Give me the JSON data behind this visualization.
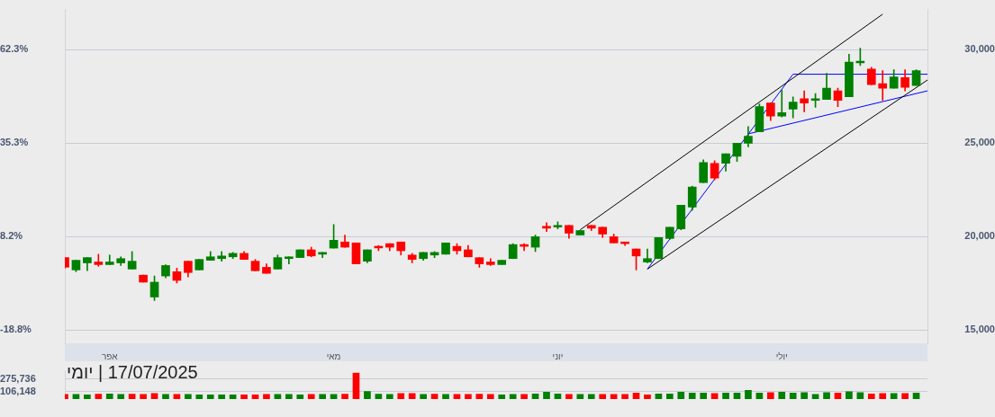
{
  "chart_data": [
    {
      "type": "candlestick",
      "categories": [
        null,
        null,
        null,
        null,
        "אפר",
        null,
        null,
        null,
        null,
        null,
        null,
        null,
        null,
        null,
        null,
        null,
        null,
        null,
        null,
        null,
        null,
        null,
        null,
        null,
        "מאי",
        null,
        null,
        null,
        null,
        null,
        null,
        null,
        null,
        null,
        null,
        null,
        null,
        null,
        null,
        null,
        null,
        null,
        null,
        null,
        "יוני",
        null,
        null,
        null,
        null,
        null,
        null,
        null,
        null,
        null,
        null,
        null,
        null,
        null,
        null,
        null,
        null,
        null,
        null,
        null,
        "יולי",
        null,
        null,
        null,
        null,
        null,
        null,
        null,
        null,
        null,
        null,
        null,
        null,
        null
      ],
      "ohlc": [
        [
          18885,
          18885,
          18320,
          18370
        ],
        [
          18225,
          18740,
          18130,
          18740
        ],
        [
          18600,
          18885,
          18180,
          18885
        ],
        [
          18650,
          19065,
          18415,
          18510
        ],
        [
          18510,
          19020,
          18510,
          18650
        ],
        [
          18600,
          18925,
          18460,
          18830
        ],
        [
          18270,
          19205,
          18270,
          18690
        ],
        [
          17945,
          17945,
          17570,
          17570
        ],
        [
          16775,
          17900,
          16590,
          17570
        ],
        [
          17900,
          18505,
          17805,
          18460
        ],
        [
          18130,
          18320,
          17525,
          17665
        ],
        [
          18690,
          18690,
          17850,
          18085
        ],
        [
          18225,
          18785,
          18225,
          18785
        ],
        [
          18740,
          19205,
          18740,
          18925
        ],
        [
          18830,
          19205,
          18690,
          18970
        ],
        [
          18925,
          19160,
          18830,
          19110
        ],
        [
          19110,
          19205,
          18785,
          18785
        ],
        [
          18690,
          18785,
          18180,
          18180
        ],
        [
          18365,
          18550,
          18040,
          18040
        ],
        [
          18270,
          19020,
          18270,
          18885
        ],
        [
          18830,
          18925,
          18550,
          18925
        ],
        [
          18885,
          19300,
          18885,
          19300
        ],
        [
          19300,
          19440,
          18925,
          18970
        ],
        [
          19065,
          19160,
          18880,
          19160
        ],
        [
          19390,
          20650,
          19390,
          19810
        ],
        [
          19720,
          20090,
          19440,
          19440
        ],
        [
          19670,
          19670,
          18550,
          18550
        ],
        [
          18690,
          19300,
          18600,
          19300
        ],
        [
          19490,
          19530,
          19250,
          19400
        ],
        [
          19630,
          19630,
          19250,
          19440
        ],
        [
          19720,
          19720,
          19020,
          19250
        ],
        [
          19020,
          19110,
          18600,
          18785
        ],
        [
          18830,
          19160,
          18740,
          19160
        ],
        [
          19020,
          19205,
          18880,
          19160
        ],
        [
          19065,
          19670,
          19065,
          19670
        ],
        [
          19485,
          19630,
          19065,
          19250
        ],
        [
          19300,
          19530,
          18925,
          18925
        ],
        [
          18880,
          18880,
          18365,
          18550
        ],
        [
          18650,
          18830,
          18460,
          18510
        ],
        [
          18510,
          18740,
          18510,
          18740
        ],
        [
          18830,
          19630,
          18830,
          19580
        ],
        [
          19580,
          19630,
          19250,
          19485
        ],
        [
          19440,
          20090,
          19205,
          20000
        ],
        [
          20555,
          20750,
          20280,
          20460
        ],
        [
          20510,
          20800,
          20420,
          20600
        ],
        [
          20600,
          20600,
          19910,
          20190
        ],
        [
          20090,
          20330,
          20090,
          20330
        ],
        [
          20600,
          20600,
          20330,
          20460
        ],
        [
          20510,
          20510,
          19955,
          20140
        ],
        [
          20000,
          20140,
          19670,
          19670
        ],
        [
          19720,
          19720,
          19530,
          19630
        ],
        [
          19345,
          19345,
          18225,
          18970
        ],
        [
          18645,
          19345,
          18600,
          18830
        ],
        [
          18830,
          19955,
          18830,
          19955
        ],
        [
          19905,
          20510,
          19860,
          20510
        ],
        [
          20420,
          21680,
          20370,
          21680
        ],
        [
          21590,
          22710,
          21400,
          22660
        ],
        [
          22900,
          24110,
          22900,
          23970
        ],
        [
          23925,
          24065,
          23040,
          23130
        ],
        [
          23925,
          24440,
          23505,
          24440
        ],
        [
          24300,
          25000,
          24020,
          25000
        ],
        [
          25000,
          25890,
          24810,
          25370
        ],
        [
          25610,
          27100,
          25610,
          26960
        ],
        [
          27150,
          27150,
          26215,
          26450
        ],
        [
          26450,
          27850,
          26400,
          26640
        ],
        [
          26820,
          27475,
          26355,
          27200
        ],
        [
          27385,
          27800,
          26680,
          27150
        ],
        [
          27290,
          27660,
          26915,
          27385
        ],
        [
          27340,
          28740,
          27340,
          27945
        ],
        [
          27800,
          27945,
          26960,
          27290
        ],
        [
          27480,
          29765,
          27480,
          29345
        ],
        [
          29300,
          30090,
          29160,
          29390
        ],
        [
          28970,
          29065,
          28130,
          28130
        ],
        [
          28180,
          28880,
          27290,
          27945
        ],
        [
          27945,
          28925,
          27945,
          28550
        ],
        [
          28505,
          28925,
          27800,
          27990
        ],
        [
          28085,
          28925,
          28085,
          28880
        ],
        null
      ],
      "colors": [
        "#ff0000",
        "#008000",
        "#008000",
        "#ff0000",
        "#008000",
        "#008000",
        "#008000",
        "#ff0000",
        "#008000",
        "#008000",
        "#ff0000",
        "#ff0000",
        "#008000",
        "#008000",
        "#008000",
        "#008000",
        "#ff0000",
        "#ff0000",
        "#ff0000",
        "#008000",
        "#008000",
        "#008000",
        "#ff0000",
        "#008000",
        "#008000",
        "#ff0000",
        "#ff0000",
        "#008000",
        "#ff0000",
        "#ff0000",
        "#ff0000",
        "#ff0000",
        "#008000",
        "#008000",
        "#008000",
        "#ff0000",
        "#ff0000",
        "#ff0000",
        "#ff0000",
        "#008000",
        "#008000",
        "#ff0000",
        "#008000",
        "#ff0000",
        "#008000",
        "#ff0000",
        "#008000",
        "#ff0000",
        "#ff0000",
        "#ff0000",
        "#ff0000",
        "#ff0000",
        "#008000",
        "#008000",
        "#008000",
        "#008000",
        "#008000",
        "#008000",
        "#ff0000",
        "#008000",
        "#008000",
        "#008000",
        "#008000",
        "#ff0000",
        "#008000",
        "#008000",
        "#ff0000",
        "#008000",
        "#008000",
        "#ff0000",
        "#008000",
        "#008000",
        "#ff0000",
        "#ff0000",
        "#008000",
        "#ff0000",
        "#008000",
        null
      ],
      "series": [
        {
          "type": "line",
          "color": "#000000",
          "values": [
            null,
            null,
            null,
            null,
            null,
            null,
            null,
            null,
            null,
            null,
            null,
            null,
            null,
            null,
            null,
            null,
            null,
            null,
            null,
            null,
            null,
            null,
            null,
            null,
            null,
            null,
            null,
            null,
            null,
            null,
            null,
            null,
            null,
            null,
            null,
            null,
            null,
            null,
            null,
            null,
            null,
            null,
            null,
            null,
            null,
            null,
            20370,
            null,
            null,
            null,
            null,
            null,
            null,
            null,
            null,
            null,
            null,
            null,
            null,
            null,
            null,
            null,
            null,
            null,
            null,
            null,
            null,
            null,
            null,
            null,
            null,
            null,
            null,
            31900,
            null,
            null,
            null,
            null
          ]
        },
        {
          "type": "line",
          "color": "#000000",
          "values": [
            null,
            null,
            null,
            null,
            null,
            null,
            null,
            null,
            null,
            null,
            null,
            null,
            null,
            null,
            null,
            null,
            null,
            null,
            null,
            null,
            null,
            null,
            null,
            null,
            null,
            null,
            null,
            null,
            null,
            null,
            null,
            null,
            null,
            null,
            null,
            null,
            null,
            null,
            null,
            null,
            null,
            null,
            null,
            null,
            null,
            null,
            null,
            null,
            null,
            null,
            null,
            null,
            18270,
            null,
            null,
            null,
            null,
            null,
            null,
            null,
            null,
            null,
            null,
            null,
            null,
            null,
            null,
            null,
            null,
            null,
            null,
            null,
            null,
            null,
            null,
            null,
            null,
            28380
          ]
        },
        {
          "type": "line",
          "color": "#0000ff",
          "values": [
            null,
            null,
            null,
            null,
            null,
            null,
            null,
            null,
            null,
            null,
            null,
            null,
            null,
            null,
            null,
            null,
            null,
            null,
            null,
            null,
            null,
            null,
            null,
            null,
            null,
            null,
            null,
            null,
            null,
            null,
            null,
            null,
            null,
            null,
            null,
            null,
            null,
            null,
            null,
            null,
            null,
            null,
            null,
            null,
            null,
            null,
            null,
            null,
            null,
            null,
            null,
            null,
            18270,
            null,
            null,
            null,
            null,
            null,
            null,
            null,
            null,
            null,
            null,
            null,
            null,
            28690,
            null,
            null,
            null,
            null,
            null,
            null,
            null,
            null,
            null,
            null,
            null,
            28690
          ]
        },
        {
          "type": "line",
          "color": "#0000ff",
          "values": [
            null,
            null,
            null,
            null,
            null,
            null,
            null,
            null,
            null,
            null,
            null,
            null,
            null,
            null,
            null,
            null,
            null,
            null,
            null,
            null,
            null,
            null,
            null,
            null,
            null,
            null,
            null,
            null,
            null,
            null,
            null,
            null,
            null,
            null,
            null,
            null,
            null,
            null,
            null,
            null,
            null,
            null,
            null,
            null,
            null,
            null,
            null,
            null,
            null,
            null,
            null,
            null,
            null,
            null,
            null,
            null,
            null,
            null,
            null,
            null,
            null,
            25500,
            null,
            null,
            null,
            null,
            null,
            null,
            null,
            null,
            null,
            null,
            null,
            null,
            null,
            null,
            null,
            27800
          ]
        }
      ],
      "ylim": [
        14300,
        32150
      ],
      "yticks": [
        {
          "value": 15000,
          "label": "15,000"
        },
        {
          "value": 20000,
          "label": "20,000"
        },
        {
          "value": 25000,
          "label": "25,000"
        },
        {
          "value": 30000,
          "label": "30,000"
        }
      ],
      "y2lim": [
        -22.7,
        73.9
      ],
      "y2ticks": [
        {
          "value": -18.8,
          "label": "-18.8%"
        },
        {
          "value": 8.2,
          "label": "8.2%"
        },
        {
          "value": 35.3,
          "label": "35.3%"
        },
        {
          "value": 62.3,
          "label": "62.3%"
        }
      ],
      "grid": "y"
    },
    {
      "type": "bar",
      "title": "17/07/2025 | יומי",
      "categories": [
        null,
        null,
        null,
        null,
        null,
        null,
        null,
        null,
        null,
        null,
        null,
        null,
        null,
        null,
        null,
        null,
        null,
        null,
        null,
        null,
        null,
        null,
        null,
        null,
        null,
        null,
        null,
        null,
        null,
        null,
        null,
        null,
        null,
        null,
        null,
        null,
        null,
        null,
        null,
        null,
        null,
        null,
        null,
        null,
        null,
        null,
        null,
        null,
        null,
        null,
        null,
        null,
        null,
        null,
        null,
        null,
        null,
        null,
        null,
        null,
        null,
        null,
        null,
        null,
        null,
        null,
        null,
        null,
        null,
        null,
        null,
        null,
        null,
        null,
        null,
        null,
        null,
        null
      ],
      "values": [
        63000,
        63000,
        59000,
        69000,
        71000,
        63000,
        69000,
        63000,
        76000,
        63000,
        63000,
        63000,
        57000,
        57000,
        57000,
        57000,
        57000,
        57000,
        63000,
        63000,
        63000,
        57000,
        63000,
        63000,
        63000,
        69000,
        361000,
        106000,
        69000,
        63000,
        76000,
        76000,
        63000,
        69000,
        63000,
        63000,
        63000,
        69000,
        63000,
        59000,
        65000,
        65000,
        71000,
        96000,
        71000,
        65000,
        65000,
        65000,
        65000,
        65000,
        65000,
        84000,
        59000,
        71000,
        71000,
        96000,
        84000,
        84000,
        78000,
        84000,
        84000,
        121000,
        84000,
        90000,
        96000,
        84000,
        90000,
        65000,
        90000,
        84000,
        102000,
        90000,
        71000,
        78000,
        78000,
        78000,
        84000,
        null
      ],
      "colors": [
        "#ff0000",
        "#008000",
        "#008000",
        "#ff0000",
        "#008000",
        "#008000",
        "#ff0000",
        "#ff0000",
        "#ff0000",
        "#008000",
        "#ff0000",
        "#008000",
        "#008000",
        "#008000",
        "#008000",
        "#008000",
        "#ff0000",
        "#ff0000",
        "#ff0000",
        "#008000",
        "#008000",
        "#008000",
        "#ff0000",
        "#008000",
        "#008000",
        "#ff0000",
        "#ff0000",
        "#008000",
        "#008000",
        "#008000",
        "#ff0000",
        "#ff0000",
        "#008000",
        "#ff0000",
        "#008000",
        "#ff0000",
        "#ff0000",
        "#ff0000",
        "#ff0000",
        "#008000",
        "#008000",
        "#ff0000",
        "#008000",
        "#008000",
        "#008000",
        "#ff0000",
        "#008000",
        "#008000",
        "#ff0000",
        "#ff0000",
        "#ff0000",
        "#ff0000",
        "#ff0000",
        "#008000",
        "#008000",
        "#008000",
        "#008000",
        "#008000",
        "#ff0000",
        "#008000",
        "#008000",
        "#008000",
        "#008000",
        "#ff0000",
        "#008000",
        "#008000",
        "#008000",
        "#008000",
        "#008000",
        "#ff0000",
        "#008000",
        "#008000",
        "#ff0000",
        "#ff0000",
        "#008000",
        "#ff0000",
        "#008000",
        null
      ],
      "ylim": [
        0,
        392000
      ],
      "yticks": [
        {
          "value": 106148,
          "label": "106,148"
        },
        {
          "value": 275736,
          "label": "275,736"
        }
      ],
      "grid": "y",
      "tick_labels": "y"
    }
  ]
}
